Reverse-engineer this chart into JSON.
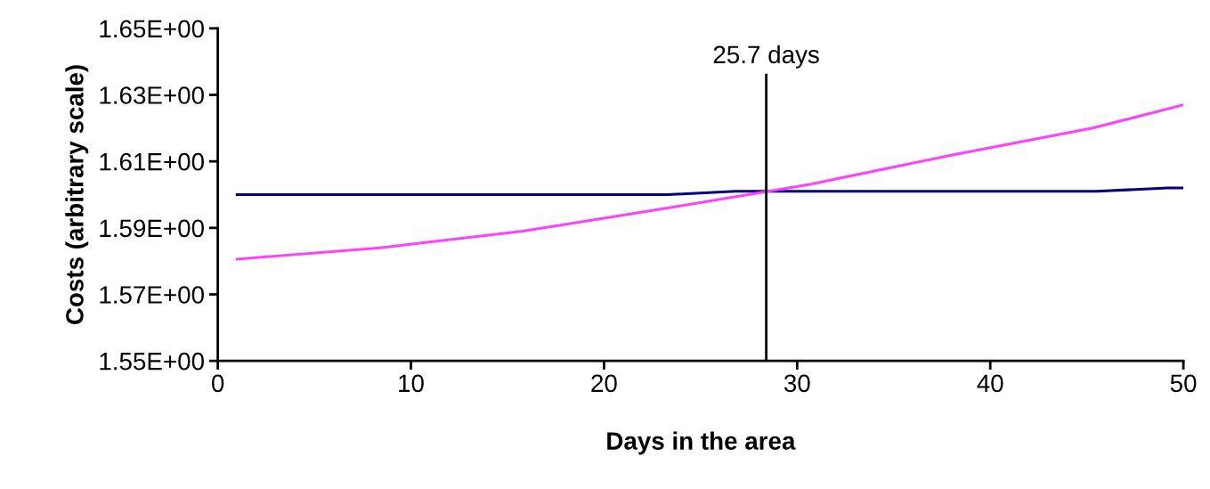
{
  "chart_data": {
    "type": "line",
    "xlabel": "Days in the area",
    "ylabel": "Costs (arbitrary scale)",
    "series": [
      {
        "color": "#000080",
        "x": [
          1,
          8.4,
          15.8,
          23.3,
          26.8,
          45.5,
          49.2,
          50
        ],
        "values": [
          1.6,
          1.6,
          1.6,
          1.6,
          1.601,
          1.601,
          1.602,
          1.602
        ]
      },
      {
        "color": "#ff40ff",
        "x": [
          1,
          8.4,
          15.8,
          23.3,
          30.6,
          38.1,
          45.3,
          50
        ],
        "values": [
          1.5806,
          1.584,
          1.589,
          1.596,
          1.603,
          1.612,
          1.62,
          1.627
        ]
      }
    ],
    "xlim": [
      0,
      50
    ],
    "xticks": [
      0,
      10,
      20,
      30,
      40,
      50
    ],
    "ylim": [
      1.55,
      1.65
    ],
    "yticks": [
      {
        "value": 1.55,
        "label": "1.55E+00"
      },
      {
        "value": 1.57,
        "label": "1.57E+00"
      },
      {
        "value": 1.59,
        "label": "1.59E+00"
      },
      {
        "value": 1.61,
        "label": "1.61E+00"
      },
      {
        "value": 1.63,
        "label": "1.63E+00"
      },
      {
        "value": 1.65,
        "label": "1.65E+00"
      }
    ],
    "ref_lines": [
      {
        "axis": "x",
        "value": 28.4,
        "label": "25.7 days",
        "color": "#000000"
      }
    ],
    "grid": false,
    "legend": false,
    "marker": "none",
    "line_style": "solid"
  }
}
